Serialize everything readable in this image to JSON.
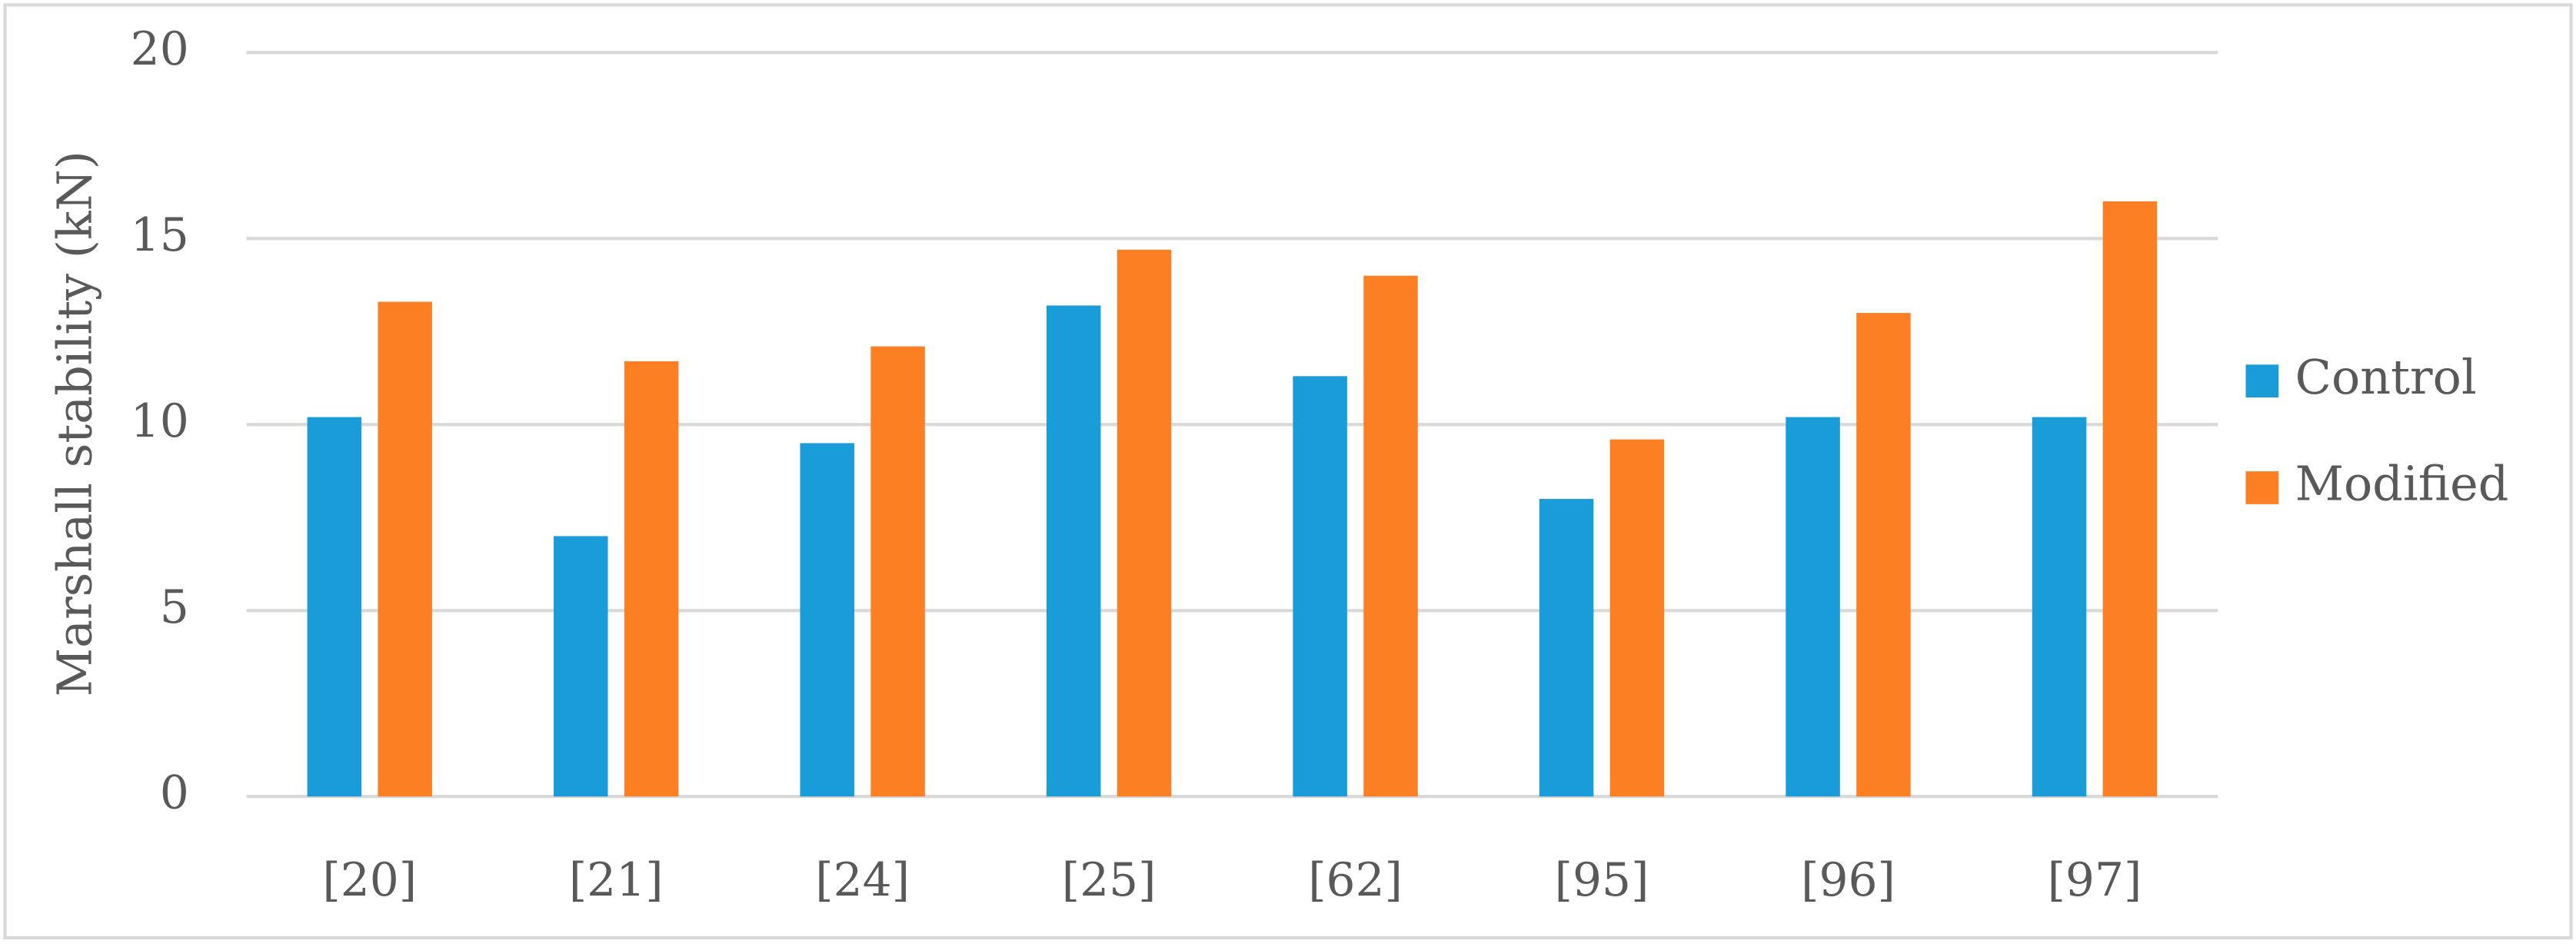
{
  "chart_data": {
    "type": "bar",
    "y_axis_label": "Marshall stability (kN)",
    "categories": [
      "[20]",
      "[21]",
      "[24]",
      "[25]",
      "[62]",
      "[95]",
      "[96]",
      "[97]"
    ],
    "series": [
      {
        "name": "Control",
        "color": "#1a9cd8",
        "values": [
          10.2,
          7.0,
          9.5,
          13.2,
          11.3,
          8.0,
          10.2,
          10.2
        ]
      },
      {
        "name": "Modified",
        "color": "#fd7f23",
        "values": [
          13.3,
          11.7,
          12.1,
          14.7,
          14.0,
          9.6,
          13.0,
          16.0
        ]
      }
    ],
    "ylim": [
      0,
      20
    ],
    "yticks": [
      0,
      5,
      10,
      15,
      20
    ],
    "grid": true,
    "legend": "right"
  }
}
